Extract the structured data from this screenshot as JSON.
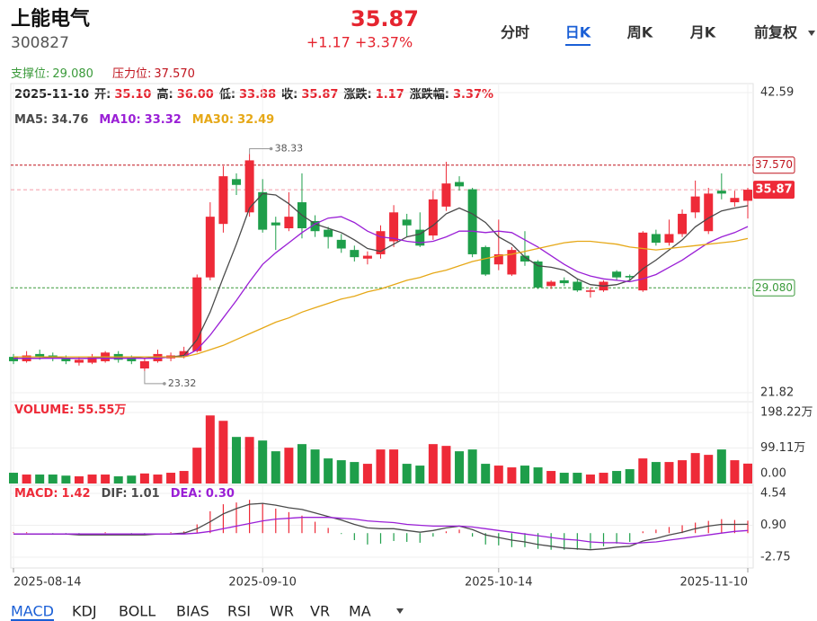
{
  "header": {
    "name": "上能电气",
    "code": "300827",
    "price": "35.87",
    "change": "+1.17 +3.37%"
  },
  "tabs": {
    "items": [
      "分时",
      "日K",
      "周K",
      "月K",
      "前复权"
    ],
    "active": 1
  },
  "levels": {
    "support": {
      "label": "支撑位:",
      "value": 29.08,
      "value_label": "29.080",
      "color": "#3a9a3a"
    },
    "resistance": {
      "label": "压力位:",
      "value": 37.57,
      "value_label": "37.570",
      "color": "#c0141e"
    }
  },
  "quote": {
    "date": "2025-11-10",
    "items": [
      {
        "label": "开:",
        "value": "35.10"
      },
      {
        "label": "高:",
        "value": "36.00"
      },
      {
        "label": "低:",
        "value": "33.88"
      },
      {
        "label": "收:",
        "value": "35.87"
      },
      {
        "label": "涨跌:",
        "value": "1.17"
      },
      {
        "label": "涨跌幅:",
        "value": "3.37%"
      }
    ]
  },
  "chart_data": [
    {
      "type": "candlestick",
      "categories": [
        "2025-08-14",
        null,
        null,
        null,
        null,
        null,
        null,
        null,
        null,
        null,
        null,
        null,
        null,
        null,
        null,
        null,
        null,
        null,
        null,
        "2025-09-10",
        null,
        null,
        null,
        null,
        null,
        null,
        null,
        null,
        null,
        null,
        null,
        null,
        null,
        null,
        null,
        null,
        null,
        "2025-10-14",
        null,
        null,
        null,
        null,
        null,
        null,
        null,
        null,
        null,
        null,
        null,
        null,
        null,
        null,
        null,
        null,
        null,
        null,
        "2025-11-10"
      ],
      "open": [
        24.3,
        24.0,
        24.5,
        24.4,
        24.2,
        23.9,
        23.9,
        24.0,
        24.5,
        24.2,
        23.5,
        24.0,
        24.2,
        24.4,
        24.7,
        29.8,
        33.5,
        36.6,
        34.3,
        35.7,
        33.6,
        33.2,
        35.0,
        33.7,
        33.1,
        32.4,
        31.7,
        31.1,
        31.4,
        32.3,
        33.8,
        33.1,
        32.7,
        34.7,
        36.4,
        35.9,
        31.9,
        30.7,
        30.0,
        31.3,
        30.9,
        29.2,
        29.6,
        29.5,
        28.8,
        28.9,
        30.2,
        29.9,
        28.9,
        32.8,
        32.2,
        32.8,
        34.3,
        33.0,
        35.8,
        35.0,
        35.1
      ],
      "high": [
        24.5,
        24.7,
        24.8,
        24.6,
        24.4,
        24.3,
        24.5,
        24.7,
        24.7,
        24.4,
        24.2,
        24.8,
        24.6,
        25.0,
        30.0,
        35.0,
        37.5,
        37.0,
        38.33,
        36.6,
        34.0,
        35.7,
        37.0,
        34.1,
        33.3,
        32.8,
        32.0,
        31.6,
        33.4,
        34.8,
        34.2,
        34.3,
        35.8,
        37.8,
        36.8,
        36.0,
        32.0,
        33.8,
        31.9,
        33.0,
        31.0,
        29.6,
        29.8,
        29.7,
        29.1,
        29.6,
        30.3,
        30.0,
        33.0,
        33.1,
        33.8,
        34.5,
        36.5,
        36.0,
        37.0,
        35.8,
        36.0
      ],
      "low": [
        23.8,
        23.9,
        24.1,
        24.0,
        23.8,
        23.7,
        23.8,
        23.9,
        23.9,
        23.8,
        23.32,
        23.9,
        24.0,
        24.2,
        24.6,
        29.6,
        32.9,
        35.5,
        34.0,
        32.9,
        31.7,
        33.0,
        32.5,
        32.6,
        31.8,
        31.5,
        30.9,
        30.7,
        31.1,
        31.9,
        32.6,
        31.9,
        32.4,
        34.4,
        35.8,
        31.2,
        29.9,
        30.3,
        29.9,
        30.6,
        29.0,
        29.0,
        29.2,
        28.8,
        28.4,
        28.8,
        29.6,
        29.6,
        28.8,
        32.0,
        32.0,
        32.6,
        33.9,
        32.8,
        35.2,
        34.7,
        33.88
      ],
      "close": [
        24.0,
        24.4,
        24.3,
        24.2,
        24.0,
        24.1,
        24.3,
        24.6,
        24.1,
        24.0,
        24.0,
        24.5,
        24.4,
        24.7,
        29.8,
        34.0,
        36.8,
        36.2,
        37.9,
        33.1,
        33.4,
        34.0,
        33.2,
        33.0,
        32.6,
        31.8,
        31.2,
        31.3,
        33.0,
        34.3,
        33.4,
        32.0,
        35.2,
        36.3,
        36.1,
        31.4,
        30.0,
        31.4,
        31.7,
        30.9,
        29.1,
        29.5,
        29.4,
        28.9,
        28.9,
        29.5,
        29.8,
        29.8,
        32.9,
        32.2,
        32.8,
        34.2,
        35.4,
        35.6,
        35.6,
        35.3,
        35.87
      ],
      "up_color": "#ee2a38",
      "down_color": "#1e9e4a",
      "series": [
        {
          "name": "MA5",
          "color": "#4a4a4a",
          "values": [
            24.2,
            24.2,
            24.2,
            24.3,
            24.2,
            24.2,
            24.2,
            24.3,
            24.3,
            24.3,
            24.2,
            24.3,
            24.3,
            24.4,
            25.5,
            27.4,
            29.8,
            32.1,
            34.6,
            35.6,
            35.5,
            34.9,
            34.1,
            33.5,
            33.2,
            32.9,
            32.4,
            31.8,
            31.6,
            32.1,
            32.6,
            32.8,
            33.4,
            34.2,
            34.6,
            34.2,
            33.6,
            32.6,
            32.1,
            31.2,
            30.6,
            30.5,
            30.3,
            29.7,
            29.3,
            29.2,
            29.3,
            29.6,
            30.4,
            31.0,
            31.7,
            32.4,
            33.3,
            33.9,
            34.4,
            34.6,
            34.76
          ]
        },
        {
          "name": "MA10",
          "color": "#9a1fd6",
          "values": [
            24.2,
            24.2,
            24.2,
            24.2,
            24.2,
            24.2,
            24.2,
            24.2,
            24.2,
            24.2,
            24.2,
            24.2,
            24.3,
            24.3,
            24.8,
            25.8,
            27.0,
            28.2,
            29.5,
            30.7,
            31.5,
            32.2,
            32.9,
            33.5,
            33.9,
            34.0,
            33.6,
            33.0,
            32.6,
            32.5,
            32.3,
            32.2,
            32.3,
            32.6,
            33.0,
            33.0,
            32.9,
            33.0,
            32.9,
            32.4,
            31.9,
            31.3,
            30.7,
            30.2,
            29.9,
            29.7,
            29.6,
            29.5,
            29.7,
            30.0,
            30.5,
            31.0,
            31.6,
            32.2,
            32.6,
            32.9,
            33.32
          ]
        },
        {
          "name": "MA30",
          "color": "#e6a817",
          "values": [
            24.3,
            24.3,
            24.3,
            24.3,
            24.3,
            24.3,
            24.3,
            24.3,
            24.3,
            24.3,
            24.3,
            24.3,
            24.3,
            24.3,
            24.5,
            24.8,
            25.1,
            25.5,
            25.9,
            26.3,
            26.7,
            27.0,
            27.4,
            27.7,
            28.0,
            28.3,
            28.5,
            28.8,
            29.0,
            29.3,
            29.6,
            29.8,
            30.1,
            30.3,
            30.6,
            30.9,
            31.1,
            31.3,
            31.4,
            31.6,
            31.8,
            32.0,
            32.2,
            32.3,
            32.3,
            32.2,
            32.1,
            31.9,
            31.8,
            31.7,
            31.8,
            31.9,
            32.0,
            32.1,
            32.2,
            32.3,
            32.49
          ]
        }
      ],
      "legend": [
        {
          "label": "MA5:",
          "value": "34.76",
          "color": "#4a4a4a"
        },
        {
          "label": "MA10:",
          "value": "33.32",
          "color": "#9a1fd6"
        },
        {
          "label": "MA30:",
          "value": "32.49",
          "color": "#e6a817"
        }
      ],
      "ylim": [
        21.82,
        42.59
      ],
      "yticks": [
        21.82,
        42.59
      ],
      "last_price": 35.87,
      "high_label": 38.33,
      "low_label": 23.32
    },
    {
      "type": "bar",
      "legend": [
        {
          "label": "VOLUME:",
          "value": "55.55万",
          "color": "#ee2a38"
        }
      ],
      "values": [
        30,
        25,
        25,
        25,
        22,
        20,
        25,
        25,
        20,
        22,
        28,
        25,
        30,
        35,
        100,
        190,
        175,
        130,
        130,
        120,
        90,
        100,
        110,
        95,
        70,
        65,
        60,
        55,
        95,
        95,
        55,
        50,
        110,
        105,
        90,
        95,
        55,
        50,
        45,
        50,
        45,
        35,
        30,
        30,
        25,
        30,
        35,
        40,
        70,
        60,
        60,
        65,
        85,
        80,
        95,
        65,
        55.55
      ],
      "ylim": [
        0,
        198.22
      ],
      "yticks": [
        {
          "value": 0,
          "label": "0.00"
        },
        {
          "value": 99.11,
          "label": "99.11万"
        },
        {
          "value": 198.22,
          "label": "198.22万"
        }
      ]
    },
    {
      "type": "macd",
      "values": [
        0.1,
        0.1,
        0,
        -0.1,
        -0.1,
        -0.1,
        0,
        0.1,
        0,
        -0.1,
        -0.1,
        0,
        0.1,
        0.2,
        1.0,
        2.5,
        3.3,
        3.5,
        3.8,
        3.4,
        2.8,
        2.4,
        2.0,
        1.3,
        0.6,
        -0.1,
        -0.8,
        -1.3,
        -1.2,
        -0.9,
        -1.0,
        -1.1,
        -0.4,
        0.2,
        0.4,
        -0.4,
        -1.3,
        -1.4,
        -1.6,
        -1.6,
        -1.8,
        -1.9,
        -1.9,
        -1.9,
        -1.8,
        -1.5,
        -1.2,
        -1.0,
        0.2,
        0.4,
        0.7,
        0.9,
        1.2,
        1.4,
        1.6,
        1.5,
        1.42
      ],
      "series": [
        {
          "name": "DIF",
          "color": "#4a4a4a",
          "values": [
            -0.1,
            -0.1,
            -0.1,
            -0.1,
            -0.1,
            -0.2,
            -0.2,
            -0.2,
            -0.2,
            -0.2,
            -0.2,
            -0.1,
            -0.1,
            0.0,
            0.5,
            1.3,
            2.2,
            2.8,
            3.3,
            3.4,
            3.2,
            2.9,
            2.7,
            2.3,
            1.9,
            1.5,
            1.0,
            0.6,
            0.5,
            0.5,
            0.3,
            0.1,
            0.3,
            0.6,
            0.8,
            0.4,
            -0.2,
            -0.5,
            -0.8,
            -1.0,
            -1.3,
            -1.5,
            -1.7,
            -1.8,
            -1.9,
            -1.8,
            -1.6,
            -1.5,
            -0.9,
            -0.6,
            -0.2,
            0.1,
            0.5,
            0.8,
            1.0,
            1.0,
            1.01
          ]
        },
        {
          "name": "DEA",
          "color": "#9a1fd6",
          "values": [
            -0.1,
            -0.1,
            -0.1,
            -0.1,
            -0.1,
            -0.1,
            -0.1,
            -0.1,
            -0.1,
            -0.1,
            -0.1,
            -0.1,
            -0.1,
            -0.1,
            0.0,
            0.2,
            0.5,
            0.8,
            1.1,
            1.4,
            1.6,
            1.7,
            1.8,
            1.8,
            1.8,
            1.7,
            1.6,
            1.4,
            1.3,
            1.2,
            1.0,
            0.9,
            0.8,
            0.8,
            0.8,
            0.7,
            0.5,
            0.3,
            0.1,
            -0.1,
            -0.3,
            -0.5,
            -0.7,
            -0.8,
            -1.0,
            -1.1,
            -1.1,
            -1.2,
            -1.1,
            -1.0,
            -0.8,
            -0.6,
            -0.4,
            -0.2,
            0.0,
            0.2,
            0.3
          ]
        }
      ],
      "legend": [
        {
          "label": "MACD:",
          "value": "1.42",
          "color": "#ee2a38"
        },
        {
          "label": "DIF:",
          "value": "1.01",
          "color": "#4a4a4a"
        },
        {
          "label": "DEA:",
          "value": "0.30",
          "color": "#9a1fd6"
        }
      ],
      "ylim": [
        -2.75,
        4.54
      ],
      "yticks": [
        -2.75,
        {
          "value": 0.9,
          "label": "0.90"
        },
        4.54
      ]
    }
  ],
  "indicator_tabs": {
    "items": [
      "MACD",
      "KDJ",
      "BOLL",
      "BIAS",
      "RSI",
      "WR",
      "VR",
      "MA"
    ],
    "active": 0
  }
}
